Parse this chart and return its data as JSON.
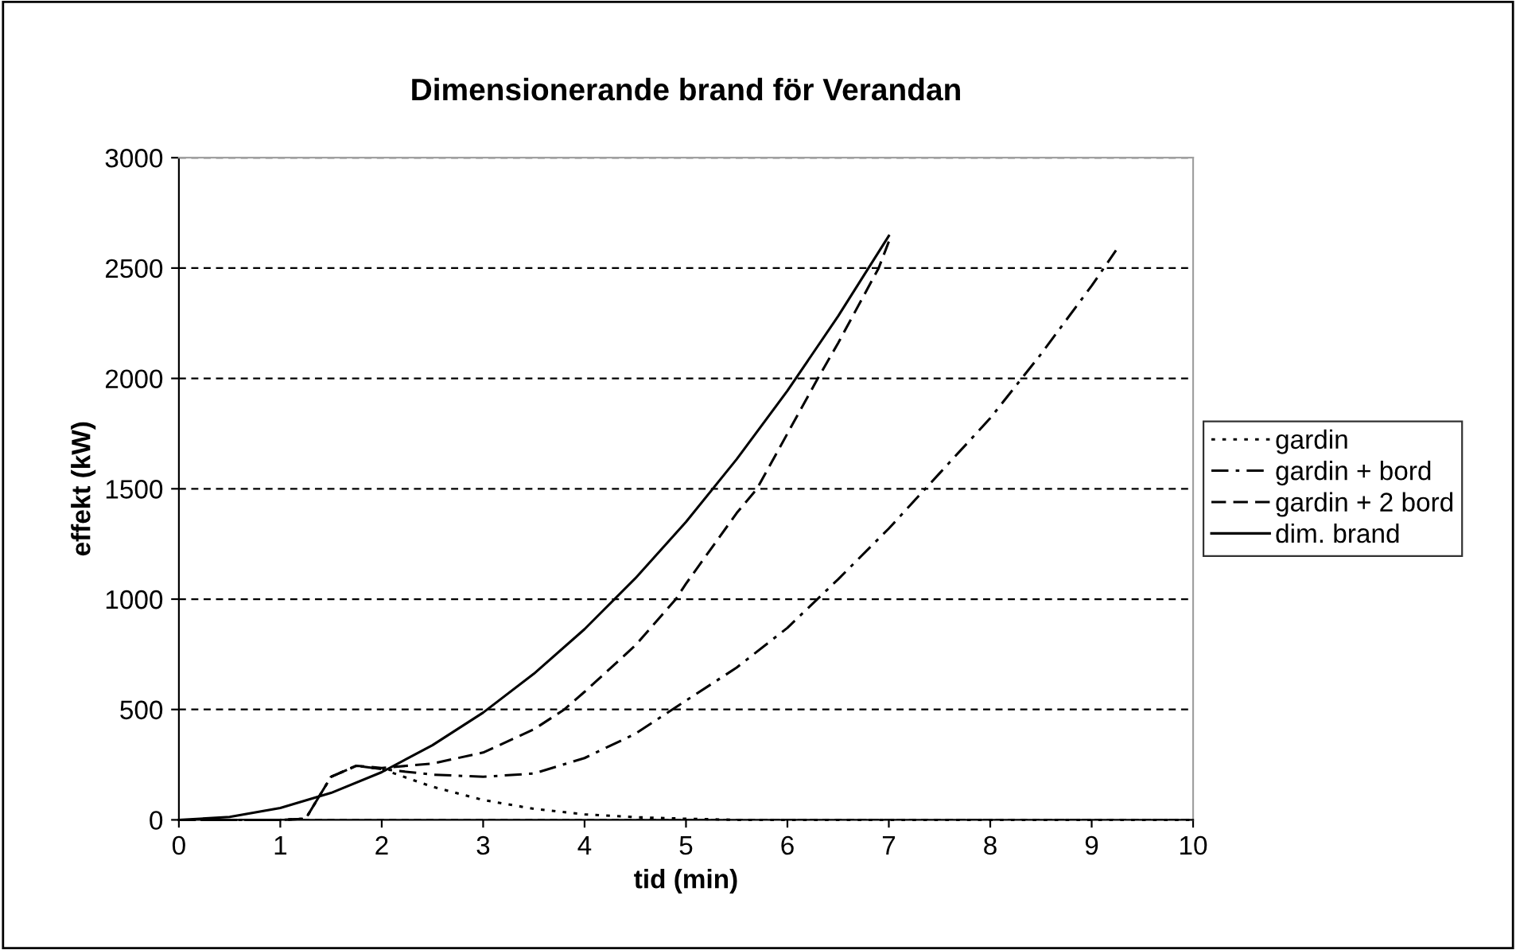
{
  "chart_data": {
    "type": "line",
    "title": "Dimensionerande brand för Verandan",
    "xlabel": "tid (min)",
    "ylabel": "effekt (kW)",
    "xlim": [
      0,
      10
    ],
    "xticks": [
      0,
      1,
      2,
      3,
      4,
      5,
      6,
      7,
      8,
      9,
      10
    ],
    "ylim": [
      0,
      3000
    ],
    "yticks": [
      0,
      500,
      1000,
      1500,
      2000,
      2500,
      3000
    ],
    "grid": "y",
    "legend": "right",
    "marker": "none",
    "series": [
      {
        "name": "gardin",
        "color": "#000000",
        "line_style": "dotted",
        "x": [
          0,
          1.0,
          1.25,
          1.5,
          1.75,
          2.0,
          2.5,
          3.0,
          3.5,
          4.0,
          4.5,
          5.0,
          5.5,
          10
        ],
        "values": [
          0,
          0,
          5,
          195,
          245,
          230,
          150,
          90,
          50,
          25,
          12,
          5,
          0,
          0
        ]
      },
      {
        "name": "gardin + bord",
        "color": "#000000",
        "line_style": "dashdot",
        "x": [
          0,
          1.0,
          1.25,
          1.5,
          1.75,
          2.0,
          2.5,
          3.0,
          3.5,
          4.0,
          4.5,
          5.0,
          5.5,
          6.0,
          6.5,
          7.0,
          7.5,
          8.0,
          8.5,
          9.0,
          9.24
        ],
        "values": [
          0,
          0,
          5,
          195,
          245,
          230,
          205,
          195,
          210,
          280,
          390,
          540,
          690,
          870,
          1090,
          1320,
          1570,
          1820,
          2110,
          2420,
          2580
        ]
      },
      {
        "name": "gardin + 2 bord",
        "color": "#000000",
        "line_style": "dashed",
        "x": [
          0,
          1.0,
          1.25,
          1.5,
          1.75,
          2.0,
          2.5,
          3.0,
          3.5,
          3.8,
          4.0,
          4.5,
          4.9,
          5.0,
          5.5,
          5.7,
          6.0,
          6.3,
          6.5,
          6.9,
          7.0
        ],
        "values": [
          0,
          0,
          5,
          195,
          245,
          235,
          255,
          305,
          410,
          500,
          580,
          790,
          1000,
          1070,
          1390,
          1500,
          1750,
          2000,
          2160,
          2500,
          2620
        ]
      },
      {
        "name": "dim. brand",
        "color": "#000000",
        "line_style": "solid",
        "x": [
          0,
          0.5,
          1.0,
          1.5,
          2.0,
          2.5,
          3.0,
          3.5,
          4.0,
          4.5,
          5.0,
          5.5,
          6.0,
          6.5,
          7.0
        ],
        "values": [
          0,
          13,
          54,
          122,
          216,
          338,
          486,
          662,
          864,
          1094,
          1350,
          1634,
          1944,
          2282,
          2646
        ]
      }
    ]
  }
}
